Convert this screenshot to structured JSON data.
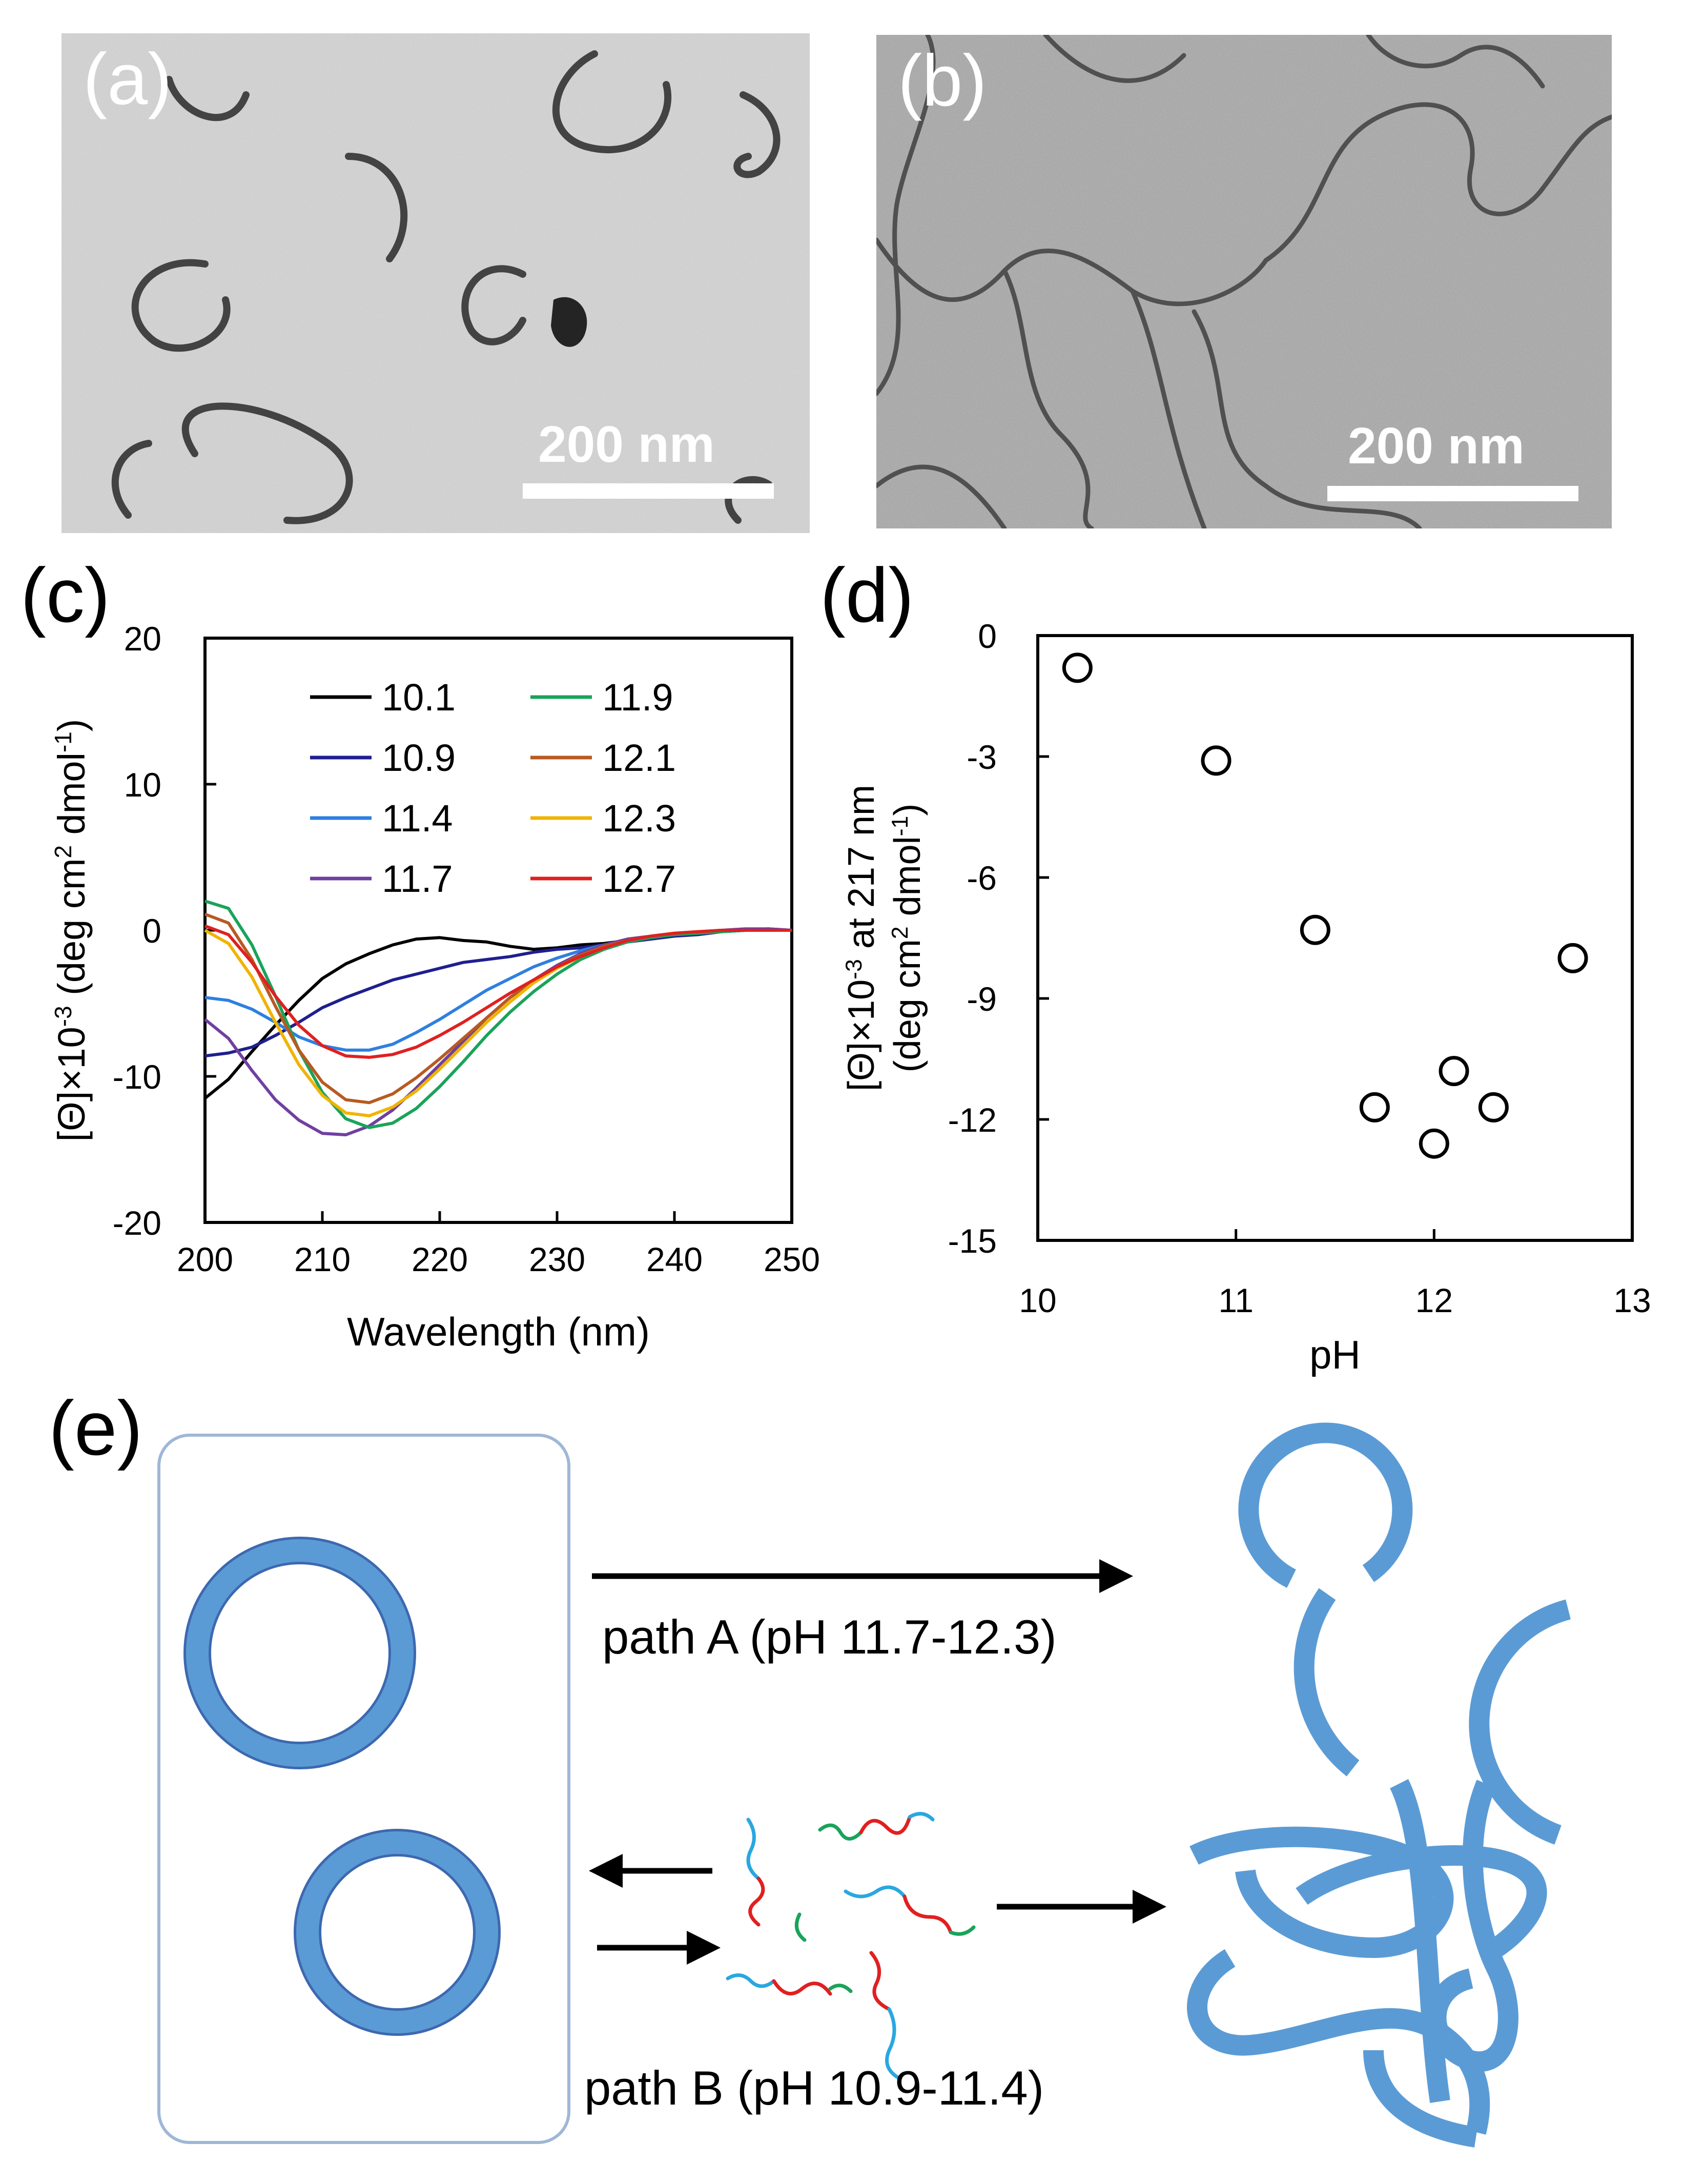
{
  "panels": {
    "a": {
      "label": "(a)",
      "scale_label": "200 nm"
    },
    "b": {
      "label": "(b)",
      "scale_label": "200 nm"
    },
    "c": {
      "label": "(c)"
    },
    "d": {
      "label": "(d)"
    },
    "e": {
      "label": "(e)",
      "path_a_label": "path A (pH 11.7-12.3)",
      "path_b_label": "path B (pH 10.9-11.4)"
    }
  },
  "chart_data": [
    {
      "id": "c",
      "type": "line",
      "xlabel": "Wavelength (nm)",
      "ylabel_main": "[Θ]×10",
      "ylabel_sup": "-3",
      "ylabel_rest": " (deg cm",
      "ylabel_sup2": "2",
      "ylabel_tail": " dmol",
      "ylabel_sup3": "-1",
      "ylabel_end": ")",
      "xlim": [
        200,
        250
      ],
      "ylim": [
        -20,
        20
      ],
      "xticks": [
        200,
        210,
        220,
        230,
        240,
        250
      ],
      "yticks": [
        -20,
        -10,
        0,
        10,
        20
      ],
      "legend_position": "top",
      "series": [
        {
          "name": "10.1",
          "color": "#000000",
          "x": [
            200,
            202,
            204,
            206,
            208,
            210,
            212,
            214,
            216,
            218,
            220,
            222,
            224,
            226,
            228,
            230,
            232,
            234,
            236,
            238,
            240,
            242,
            244,
            246,
            248,
            250
          ],
          "y": [
            -11.5,
            -10.2,
            -8.3,
            -6.5,
            -4.8,
            -3.3,
            -2.3,
            -1.6,
            -1.0,
            -0.6,
            -0.5,
            -0.7,
            -0.8,
            -1.1,
            -1.3,
            -1.2,
            -1.0,
            -0.9,
            -0.7,
            -0.5,
            -0.3,
            -0.2,
            -0.1,
            0,
            0,
            0
          ]
        },
        {
          "name": "10.9",
          "color": "#1f1f8f",
          "x": [
            200,
            202,
            204,
            206,
            208,
            210,
            212,
            214,
            216,
            218,
            220,
            222,
            224,
            226,
            228,
            230,
            232,
            234,
            236,
            238,
            240,
            242,
            244,
            246,
            248,
            250
          ],
          "y": [
            -8.6,
            -8.4,
            -8.0,
            -7.2,
            -6.3,
            -5.3,
            -4.6,
            -4.0,
            -3.4,
            -3.0,
            -2.6,
            -2.2,
            -2.0,
            -1.8,
            -1.5,
            -1.3,
            -1.2,
            -1.0,
            -0.8,
            -0.6,
            -0.4,
            -0.3,
            -0.1,
            0,
            0.1,
            0
          ]
        },
        {
          "name": "11.4",
          "color": "#2f7fe0",
          "x": [
            200,
            202,
            204,
            206,
            208,
            210,
            212,
            214,
            216,
            218,
            220,
            222,
            224,
            226,
            228,
            230,
            232,
            234,
            236,
            238,
            240,
            242,
            244,
            246,
            248,
            250
          ],
          "y": [
            -4.6,
            -4.8,
            -5.4,
            -6.3,
            -7.3,
            -7.9,
            -8.2,
            -8.2,
            -7.8,
            -7.0,
            -6.1,
            -5.1,
            -4.1,
            -3.3,
            -2.5,
            -1.9,
            -1.4,
            -1.0,
            -0.7,
            -0.4,
            -0.3,
            -0.2,
            -0.1,
            0,
            0.1,
            0
          ]
        },
        {
          "name": "11.7",
          "color": "#7040a0",
          "x": [
            200,
            202,
            204,
            206,
            208,
            210,
            212,
            214,
            216,
            218,
            220,
            222,
            224,
            226,
            228,
            230,
            232,
            234,
            236,
            238,
            240,
            242,
            244,
            246,
            248,
            250
          ],
          "y": [
            -6.1,
            -7.4,
            -9.6,
            -11.6,
            -13.0,
            -13.9,
            -14.0,
            -13.4,
            -12.3,
            -10.8,
            -9.2,
            -7.6,
            -6.0,
            -4.6,
            -3.4,
            -2.4,
            -1.6,
            -1.0,
            -0.6,
            -0.4,
            -0.2,
            -0.1,
            0,
            0.1,
            0.1,
            0
          ]
        },
        {
          "name": "11.9",
          "color": "#1aa35a",
          "x": [
            200,
            202,
            204,
            206,
            208,
            210,
            212,
            214,
            216,
            218,
            220,
            222,
            224,
            226,
            228,
            230,
            232,
            234,
            236,
            238,
            240,
            242,
            244,
            246,
            248,
            250
          ],
          "y": [
            2.0,
            1.5,
            -1.0,
            -4.5,
            -8.2,
            -11.1,
            -12.9,
            -13.5,
            -13.2,
            -12.2,
            -10.7,
            -9.0,
            -7.2,
            -5.6,
            -4.2,
            -3.0,
            -2.0,
            -1.3,
            -0.8,
            -0.5,
            -0.3,
            -0.2,
            -0.1,
            0,
            0,
            0
          ]
        },
        {
          "name": "12.1",
          "color": "#b85a22",
          "x": [
            200,
            202,
            204,
            206,
            208,
            210,
            212,
            214,
            216,
            218,
            220,
            222,
            224,
            226,
            228,
            230,
            232,
            234,
            236,
            238,
            240,
            242,
            244,
            246,
            248,
            250
          ],
          "y": [
            1.1,
            0.5,
            -2.0,
            -5.2,
            -8.2,
            -10.4,
            -11.6,
            -11.8,
            -11.2,
            -10.1,
            -8.8,
            -7.4,
            -6.0,
            -4.6,
            -3.5,
            -2.5,
            -1.7,
            -1.1,
            -0.7,
            -0.4,
            -0.2,
            -0.1,
            0,
            0,
            0,
            0
          ]
        },
        {
          "name": "12.3",
          "color": "#f0b400",
          "x": [
            200,
            202,
            204,
            206,
            208,
            210,
            212,
            214,
            216,
            218,
            220,
            222,
            224,
            226,
            228,
            230,
            232,
            234,
            236,
            238,
            240,
            242,
            244,
            246,
            248,
            250
          ],
          "y": [
            0.0,
            -0.9,
            -3.2,
            -6.3,
            -9.2,
            -11.3,
            -12.5,
            -12.7,
            -12.1,
            -11.0,
            -9.5,
            -7.9,
            -6.3,
            -4.9,
            -3.6,
            -2.6,
            -1.8,
            -1.2,
            -0.7,
            -0.4,
            -0.2,
            -0.1,
            0,
            0,
            0,
            0
          ]
        },
        {
          "name": "12.7",
          "color": "#e02020",
          "x": [
            200,
            202,
            204,
            206,
            208,
            210,
            212,
            214,
            216,
            218,
            220,
            222,
            224,
            226,
            228,
            230,
            232,
            234,
            236,
            238,
            240,
            242,
            244,
            246,
            248,
            250
          ],
          "y": [
            0.3,
            -0.3,
            -2.2,
            -4.5,
            -6.5,
            -7.9,
            -8.6,
            -8.7,
            -8.5,
            -8.0,
            -7.2,
            -6.3,
            -5.3,
            -4.3,
            -3.4,
            -2.5,
            -1.8,
            -1.2,
            -0.7,
            -0.4,
            -0.2,
            -0.1,
            0,
            0,
            0,
            0
          ]
        }
      ]
    },
    {
      "id": "d",
      "type": "scatter",
      "xlabel": "pH",
      "ylabel_line1_main": "[Θ]×10",
      "ylabel_line1_sup": "-3",
      "ylabel_line1_rest": " at 217 nm",
      "ylabel_line2_a": "(deg cm",
      "ylabel_line2_sup": "2",
      "ylabel_line2_b": " dmol",
      "ylabel_line2_sup2": "-1",
      "ylabel_line2_c": ")",
      "xlim": [
        10,
        13
      ],
      "ylim": [
        -15,
        0
      ],
      "xticks": [
        10,
        11,
        12,
        13
      ],
      "yticks": [
        -15,
        -12,
        -9,
        -6,
        -3,
        0
      ],
      "points": [
        {
          "x": 10.2,
          "y": -0.8
        },
        {
          "x": 10.9,
          "y": -3.1
        },
        {
          "x": 11.4,
          "y": -7.3
        },
        {
          "x": 11.7,
          "y": -11.7
        },
        {
          "x": 12.0,
          "y": -12.6
        },
        {
          "x": 12.1,
          "y": -10.8
        },
        {
          "x": 12.3,
          "y": -11.7
        },
        {
          "x": 12.7,
          "y": -8.0
        }
      ]
    }
  ]
}
